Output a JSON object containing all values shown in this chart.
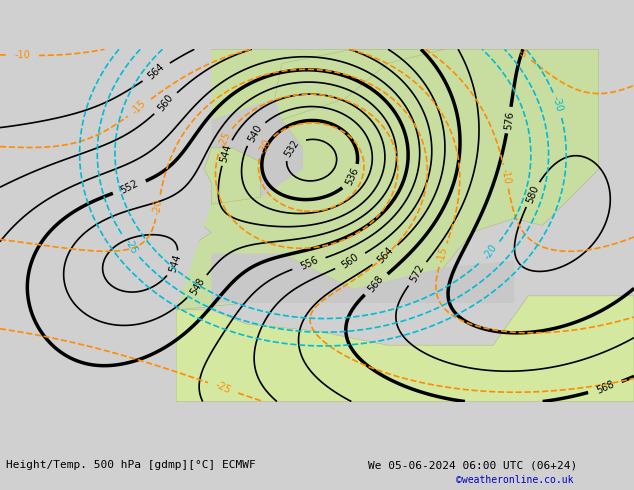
{
  "title_left": "Height/Temp. 500 hPa [gdmp][°C] ECMWF",
  "title_right": "We 05-06-2024 06:00 UTC (06+24)",
  "credit": "©weatheronline.co.uk",
  "bg_land_color": "#c8e6a0",
  "bg_sea_color": "#d3d3d3",
  "bg_outer_color": "#d0d0d0",
  "contour_z500_color": "#000000",
  "contour_temp_neg_color": "#ff8c00",
  "contour_temp_pos_color": "#ff0000",
  "contour_precip_color": "#00bcd4",
  "figsize": [
    6.34,
    4.9
  ],
  "dpi": 100,
  "bottom_text_color": "#000000",
  "credit_color": "#0000cc",
  "font_size_labels": 7,
  "font_size_bottom": 8
}
